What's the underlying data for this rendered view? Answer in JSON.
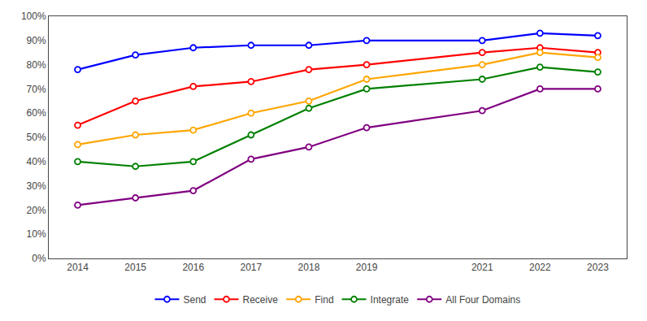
{
  "chart_data": {
    "type": "line",
    "x": [
      2014,
      2015,
      2016,
      2017,
      2018,
      2019,
      2021,
      2022,
      2023
    ],
    "series": [
      {
        "name": "Send",
        "color": "#0000FF",
        "values": [
          0.78,
          0.84,
          0.87,
          0.88,
          0.88,
          0.9,
          0.9,
          0.93,
          0.92
        ]
      },
      {
        "name": "Receive",
        "color": "#FF0000",
        "values": [
          0.55,
          0.65,
          0.71,
          0.73,
          0.78,
          0.8,
          0.85,
          0.87,
          0.85
        ]
      },
      {
        "name": "Find",
        "color": "#FFA500",
        "values": [
          0.47,
          0.51,
          0.53,
          0.6,
          0.65,
          0.74,
          0.8,
          0.85,
          0.83
        ]
      },
      {
        "name": "Integrate",
        "color": "#008000",
        "values": [
          0.4,
          0.38,
          0.4,
          0.51,
          0.62,
          0.7,
          0.74,
          0.79,
          0.77
        ]
      },
      {
        "name": "All Four Domains",
        "color": "#800080",
        "values": [
          0.22,
          0.25,
          0.28,
          0.41,
          0.46,
          0.54,
          0.61,
          0.7,
          0.7
        ]
      }
    ],
    "xlim": [
      2013.5,
      2023.5
    ],
    "xticks": [
      2014,
      2015,
      2016,
      2017,
      2018,
      2019,
      2021,
      2022,
      2023
    ],
    "ylim": [
      0.0,
      1.0
    ],
    "yticks": [
      {
        "value": 0.0,
        "label": "0%"
      },
      {
        "value": 0.1,
        "label": "10%"
      },
      {
        "value": 0.2,
        "label": "20%"
      },
      {
        "value": 0.3,
        "label": "30%"
      },
      {
        "value": 0.4,
        "label": "40%"
      },
      {
        "value": 0.5,
        "label": "50%"
      },
      {
        "value": 0.6,
        "label": "60%"
      },
      {
        "value": 0.7,
        "label": "70%"
      },
      {
        "value": 0.8,
        "label": "80%"
      },
      {
        "value": 0.9,
        "label": "90%"
      },
      {
        "value": 1.0,
        "label": "100%"
      }
    ],
    "marker": "circle",
    "grid": false,
    "legend": "bottom"
  }
}
